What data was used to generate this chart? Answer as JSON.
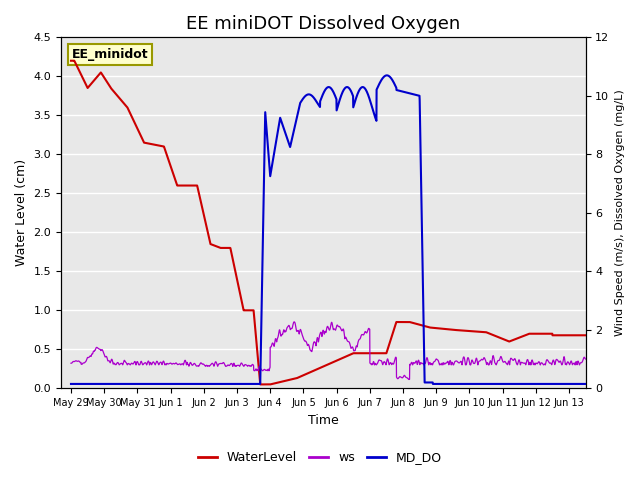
{
  "title": "EE miniDOT Dissolved Oxygen",
  "ylabel_left": "Water Level (cm)",
  "ylabel_right": "Wind Speed (m/s), Dissolved Oxygen (mg/L)",
  "xlabel": "Time",
  "ylim_left": [
    0,
    4.5
  ],
  "ylim_right": [
    0,
    12
  ],
  "yticks_left": [
    0.0,
    0.5,
    1.0,
    1.5,
    2.0,
    2.5,
    3.0,
    3.5,
    4.0,
    4.5
  ],
  "yticks_right": [
    0,
    2,
    4,
    6,
    8,
    10,
    12
  ],
  "background_color": "#e8e8e8",
  "line_water_color": "#cc0000",
  "line_ws_color": "#aa00cc",
  "line_do_color": "#0000cc",
  "legend_box_label": "EE_minidot",
  "legend_box_facecolor": "#ffffcc",
  "legend_box_edgecolor": "#999900",
  "legend_labels": [
    "WaterLevel",
    "ws",
    "MD_DO"
  ],
  "grid_color": "white",
  "xtick_labels": [
    "May 29",
    "May 30",
    "May 31",
    "Jun 1",
    "Jun 2",
    "Jun 3",
    "Jun 4",
    "Jun 5",
    "Jun 6",
    "Jun 7",
    "Jun 8",
    "Jun 9",
    "Jun 10",
    "Jun 11",
    "Jun 12",
    "Jun 13"
  ],
  "title_fontsize": 13,
  "figsize": [
    6.4,
    4.8
  ],
  "dpi": 100
}
